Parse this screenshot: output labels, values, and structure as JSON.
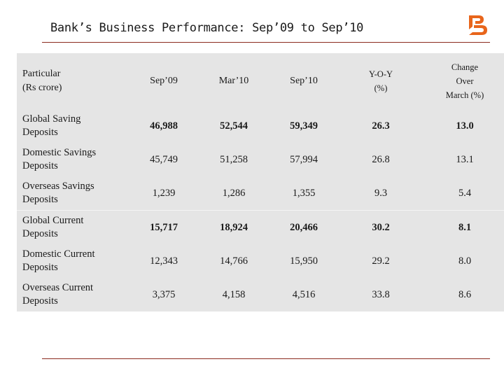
{
  "slide": {
    "title": "Bank’s Business Performance: Sep’09 to Sep’10"
  },
  "colors": {
    "logo_orange": "#e8651b",
    "rule": "#8b2a1e",
    "table_bg": "#e5e5e5"
  },
  "table": {
    "headers": {
      "particular_line1": "Particular",
      "particular_line2": "(Rs crore)",
      "sep09": "Sep’09",
      "mar10": "Mar’10",
      "sep10": "Sep’10",
      "yoy_line1": "Y-O-Y",
      "yoy_line2": "(%)",
      "change_line1": "Change",
      "change_line2": "Over",
      "change_line3": "March (%)"
    },
    "rows": [
      {
        "name_line1": "Global Saving",
        "name_line2": "Deposits",
        "sep09": "46,988",
        "mar10": "52,544",
        "sep10": "59,349",
        "yoy": "26.3",
        "change": "13.0"
      },
      {
        "name_line1": "Domestic Savings",
        "name_line2": "Deposits",
        "sep09": "45,749",
        "mar10": "51,258",
        "sep10": "57,994",
        "yoy": "26.8",
        "change": "13.1"
      },
      {
        "name_line1": "Overseas Savings",
        "name_line2": "Deposits",
        "sep09": "1,239",
        "mar10": "1,286",
        "sep10": "1,355",
        "yoy": "9.3",
        "change": "5.4"
      },
      {
        "name_line1": "Global Current",
        "name_line2": "Deposits",
        "sep09": "15,717",
        "mar10": "18,924",
        "sep10": "20,466",
        "yoy": "30.2",
        "change": "8.1"
      },
      {
        "name_line1": "Domestic Current",
        "name_line2": "Deposits",
        "sep09": "12,343",
        "mar10": "14,766",
        "sep10": "15,950",
        "yoy": "29.2",
        "change": "8.0"
      },
      {
        "name_line1": "Overseas Current",
        "name_line2": "Deposits",
        "sep09": "3,375",
        "mar10": "4,158",
        "sep10": "4,516",
        "yoy": "33.8",
        "change": "8.6"
      }
    ]
  }
}
